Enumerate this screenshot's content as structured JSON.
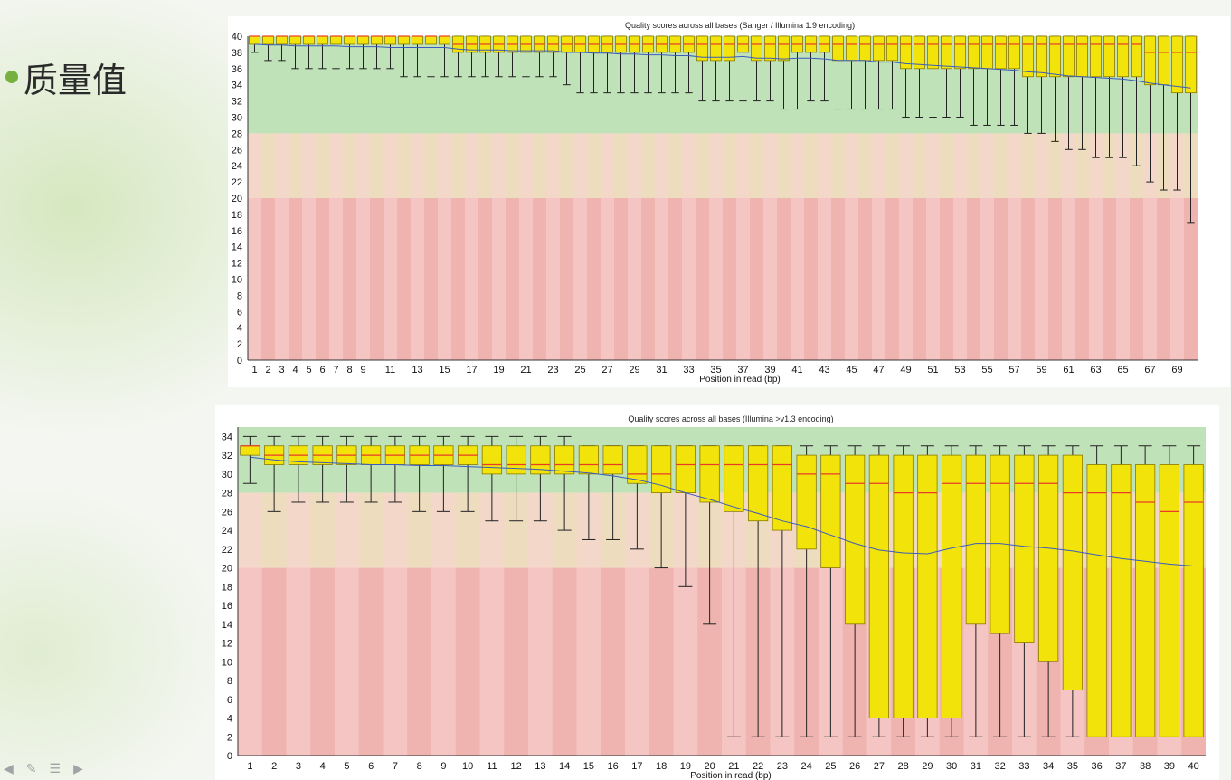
{
  "slide": {
    "title": "质量值",
    "bullet_color": "#76b13f"
  },
  "colors": {
    "zone_good": "#c0e2b8",
    "zone_ok": "#eedcbe",
    "zone_bad": "#efb4b0",
    "stripe_light": "#f7d4d2",
    "box_fill": "#f2e40a",
    "box_stroke": "#8a7a00",
    "median": "#e83b2a",
    "mean_line": "#3b5bbd"
  },
  "chart_data": [
    {
      "type": "box",
      "title": "Quality scores across all bases (Sanger / Illumina 1.9 encoding)",
      "xlabel": "Position in read (bp)",
      "ylabel": "",
      "ylim": [
        0,
        40
      ],
      "yticks": [
        0,
        2,
        4,
        6,
        8,
        10,
        12,
        14,
        16,
        18,
        20,
        22,
        24,
        26,
        28,
        30,
        32,
        34,
        36,
        38,
        40
      ],
      "zones": {
        "good": [
          28,
          40
        ],
        "ok": [
          20,
          28
        ],
        "bad": [
          0,
          20
        ]
      },
      "categories": [
        "1",
        "2",
        "3",
        "4",
        "5",
        "6",
        "7",
        "8",
        "9",
        "",
        "11",
        "",
        "13",
        "",
        "15",
        "",
        "17",
        "",
        "19",
        "",
        "21",
        "",
        "23",
        "",
        "25",
        "",
        "27",
        "",
        "29",
        "",
        "31",
        "",
        "33",
        "",
        "35",
        "",
        "37",
        "",
        "39",
        "",
        "41",
        "",
        "43",
        "",
        "45",
        "",
        "47",
        "",
        "49",
        "",
        "51",
        "",
        "53",
        "",
        "55",
        "",
        "57",
        "",
        "59",
        "",
        "61",
        "",
        "63",
        "",
        "65",
        "",
        "67",
        "",
        "69",
        ""
      ],
      "x_tick_labels": [
        "1",
        "2",
        "3",
        "4",
        "5",
        "6",
        "7",
        "8",
        "9",
        "11",
        "13",
        "15",
        "17",
        "19",
        "21",
        "23",
        "25",
        "27",
        "29",
        "31",
        "33",
        "35",
        "37",
        "39",
        "41",
        "43",
        "45",
        "47",
        "49",
        "51",
        "53",
        "55",
        "57",
        "59",
        "61",
        "63",
        "65",
        "67",
        "69"
      ],
      "boxes": {
        "median": [
          40,
          40,
          40,
          40,
          40,
          40,
          40,
          40,
          40,
          40,
          40,
          40,
          40,
          40,
          40,
          39,
          39,
          39,
          39,
          39,
          39,
          39,
          39,
          39,
          39,
          39,
          39,
          39,
          39,
          39,
          39,
          39,
          39,
          39,
          39,
          39,
          39,
          39,
          39,
          39,
          39,
          39,
          39,
          39,
          39,
          39,
          39,
          39,
          39,
          39,
          39,
          39,
          39,
          39,
          39,
          39,
          39,
          39,
          39,
          39,
          39,
          39,
          39,
          39,
          39,
          39,
          38,
          38,
          38,
          38
        ],
        "q1": [
          39,
          39,
          39,
          39,
          39,
          39,
          39,
          39,
          39,
          39,
          39,
          39,
          39,
          39,
          39,
          38,
          38,
          38,
          38,
          38,
          38,
          38,
          38,
          38,
          38,
          38,
          38,
          38,
          38,
          38,
          38,
          38,
          38,
          37,
          37,
          37,
          38,
          37,
          37,
          37,
          38,
          38,
          38,
          37,
          37,
          37,
          37,
          37,
          36,
          36,
          36,
          36,
          36,
          36,
          36,
          36,
          36,
          35,
          35,
          35,
          35,
          35,
          35,
          35,
          35,
          35,
          34,
          34,
          33,
          33
        ],
        "q3": [
          40,
          40,
          40,
          40,
          40,
          40,
          40,
          40,
          40,
          40,
          40,
          40,
          40,
          40,
          40,
          40,
          40,
          40,
          40,
          40,
          40,
          40,
          40,
          40,
          40,
          40,
          40,
          40,
          40,
          40,
          40,
          40,
          40,
          40,
          40,
          40,
          40,
          40,
          40,
          40,
          40,
          40,
          40,
          40,
          40,
          40,
          40,
          40,
          40,
          40,
          40,
          40,
          40,
          40,
          40,
          40,
          40,
          40,
          40,
          40,
          40,
          40,
          40,
          40,
          40,
          40,
          40,
          40,
          40,
          40
        ],
        "low": [
          38,
          37,
          37,
          36,
          36,
          36,
          36,
          36,
          36,
          36,
          36,
          35,
          35,
          35,
          35,
          35,
          35,
          35,
          35,
          35,
          35,
          35,
          35,
          34,
          33,
          33,
          33,
          33,
          33,
          33,
          33,
          33,
          33,
          32,
          32,
          32,
          32,
          32,
          32,
          31,
          31,
          32,
          32,
          31,
          31,
          31,
          31,
          31,
          30,
          30,
          30,
          30,
          30,
          29,
          29,
          29,
          29,
          28,
          28,
          27,
          26,
          26,
          25,
          25,
          25,
          24,
          22,
          21,
          21,
          17
        ],
        "high": [
          40,
          40,
          40,
          40,
          40,
          40,
          40,
          40,
          40,
          40,
          40,
          40,
          40,
          40,
          40,
          40,
          40,
          40,
          40,
          40,
          40,
          40,
          40,
          40,
          40,
          40,
          40,
          40,
          40,
          40,
          40,
          40,
          40,
          40,
          40,
          40,
          40,
          40,
          40,
          40,
          40,
          40,
          40,
          40,
          40,
          40,
          40,
          40,
          40,
          40,
          40,
          40,
          40,
          40,
          40,
          40,
          40,
          40,
          40,
          40,
          40,
          40,
          40,
          40,
          40,
          40,
          40,
          40,
          40,
          40
        ],
        "mean": [
          39.0,
          38.9,
          38.9,
          38.8,
          38.8,
          38.8,
          38.8,
          38.7,
          38.7,
          38.7,
          38.6,
          38.6,
          38.6,
          38.6,
          38.6,
          38.4,
          38.3,
          38.3,
          38.3,
          38.2,
          38.2,
          38.2,
          38.2,
          38.0,
          38.0,
          37.9,
          37.9,
          37.8,
          37.8,
          37.7,
          37.7,
          37.6,
          37.6,
          37.4,
          37.4,
          37.4,
          37.5,
          37.3,
          37.3,
          37.2,
          37.3,
          37.3,
          37.2,
          37.0,
          37.0,
          37.0,
          36.8,
          36.8,
          36.6,
          36.5,
          36.4,
          36.3,
          36.2,
          36.1,
          36.0,
          35.9,
          35.8,
          35.6,
          35.5,
          35.3,
          35.1,
          35.0,
          34.9,
          34.8,
          34.7,
          34.5,
          34.2,
          34.0,
          33.8,
          33.6
        ]
      }
    },
    {
      "type": "box",
      "title": "Quality scores across all bases (Illumina >v1.3 encoding)",
      "xlabel": "Position in read (bp)",
      "ylabel": "",
      "ylim": [
        0,
        35
      ],
      "yticks": [
        0,
        2,
        4,
        6,
        8,
        10,
        12,
        14,
        16,
        18,
        20,
        22,
        24,
        26,
        28,
        30,
        32,
        34
      ],
      "zones": {
        "good": [
          28,
          35
        ],
        "ok": [
          20,
          28
        ],
        "bad": [
          0,
          20
        ]
      },
      "categories": [
        "1",
        "2",
        "3",
        "4",
        "5",
        "6",
        "7",
        "8",
        "9",
        "10",
        "11",
        "12",
        "13",
        "14",
        "15",
        "16",
        "17",
        "18",
        "19",
        "20",
        "21",
        "22",
        "23",
        "24",
        "25",
        "26",
        "27",
        "28",
        "29",
        "30",
        "31",
        "32",
        "33",
        "34",
        "35",
        "36",
        "37",
        "38",
        "39",
        "40"
      ],
      "boxes": {
        "median": [
          33,
          32,
          32,
          32,
          32,
          32,
          32,
          32,
          32,
          32,
          31,
          31,
          31,
          31,
          31,
          31,
          30,
          30,
          31,
          31,
          31,
          31,
          31,
          30,
          30,
          29,
          29,
          28,
          28,
          29,
          29,
          29,
          29,
          29,
          28,
          28,
          28,
          27,
          26,
          27
        ],
        "q1": [
          32,
          31,
          31,
          31,
          31,
          31,
          31,
          31,
          31,
          31,
          30,
          30,
          30,
          30,
          30,
          30,
          29,
          28,
          28,
          27,
          26,
          25,
          24,
          22,
          20,
          14,
          4,
          4,
          4,
          4,
          14,
          13,
          12,
          10,
          7,
          2,
          2,
          2,
          2,
          2
        ],
        "q3": [
          33,
          33,
          33,
          33,
          33,
          33,
          33,
          33,
          33,
          33,
          33,
          33,
          33,
          33,
          33,
          33,
          33,
          33,
          33,
          33,
          33,
          33,
          33,
          32,
          32,
          32,
          32,
          32,
          32,
          32,
          32,
          32,
          32,
          32,
          32,
          31,
          31,
          31,
          31,
          31
        ],
        "low": [
          29,
          26,
          27,
          27,
          27,
          27,
          27,
          26,
          26,
          26,
          25,
          25,
          25,
          24,
          23,
          23,
          22,
          20,
          18,
          14,
          2,
          2,
          2,
          2,
          2,
          2,
          2,
          2,
          2,
          2,
          2,
          2,
          2,
          2,
          2,
          2,
          2,
          2,
          2,
          2
        ],
        "high": [
          34,
          34,
          34,
          34,
          34,
          34,
          34,
          34,
          34,
          34,
          34,
          34,
          34,
          34,
          33,
          33,
          33,
          33,
          33,
          33,
          33,
          33,
          33,
          33,
          33,
          33,
          33,
          33,
          33,
          33,
          33,
          33,
          33,
          33,
          33,
          33,
          33,
          33,
          33,
          33
        ],
        "mean": [
          31.8,
          31.5,
          31.3,
          31.2,
          31.1,
          31.0,
          31.0,
          30.9,
          30.9,
          30.8,
          30.7,
          30.6,
          30.5,
          30.3,
          30.1,
          29.8,
          29.4,
          28.8,
          28.0,
          27.3,
          26.5,
          25.8,
          25.0,
          24.4,
          23.5,
          22.6,
          21.9,
          21.6,
          21.5,
          22.1,
          22.6,
          22.6,
          22.3,
          22.1,
          21.8,
          21.4,
          21.0,
          20.7,
          20.4,
          20.2
        ]
      }
    }
  ]
}
